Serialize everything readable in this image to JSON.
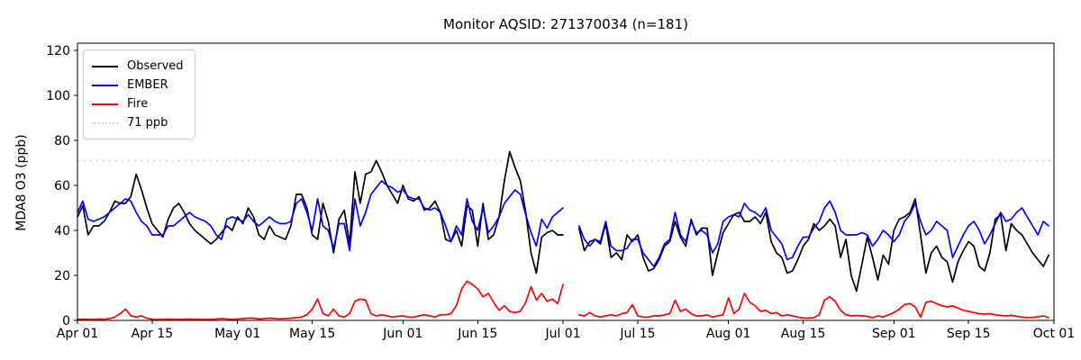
{
  "figure": {
    "title": "Monitor AQSID: 271370034 (n=181)",
    "ylabel": "MDA8 O3 (ppb)"
  },
  "legend": {
    "items": [
      {
        "label": "Observed",
        "color": "#000000",
        "style": "solid"
      },
      {
        "label": "EMBER",
        "color": "#0000ff",
        "style": "solid"
      },
      {
        "label": "Fire",
        "color": "#ff0000",
        "style": "solid"
      },
      {
        "label": "71 ppb",
        "color": "#d3d3d3",
        "style": "dotted"
      }
    ]
  },
  "chart_data": {
    "type": "line",
    "title": "Monitor AQSID: 271370034 (n=181)",
    "xlabel": "",
    "ylabel": "MDA8 O3 (ppb)",
    "grid": false,
    "legend_position": "upper left",
    "x_unit": "day_index_from_Apr_01",
    "x_range_days": 183,
    "x_tick_days": [
      0,
      14,
      30,
      44,
      61,
      75,
      91,
      105,
      122,
      136,
      153,
      167,
      183
    ],
    "x_tick_labels": [
      "Apr 01",
      "Apr 15",
      "May 01",
      "May 15",
      "Jun 01",
      "Jun 15",
      "Jul 01",
      "Jul 15",
      "Aug 01",
      "Aug 15",
      "Sep 01",
      "Sep 15",
      "Oct 01"
    ],
    "y_ticks": [
      0,
      20,
      40,
      60,
      80,
      100,
      120
    ],
    "ylim": [
      0,
      123.2
    ],
    "missing_days_note": "Jul 02 and Jul 03 are null (gap in lines)",
    "threshold": {
      "value": 71,
      "label": "71 ppb",
      "color": "#d3d3d3",
      "style": "dotted"
    },
    "series": [
      {
        "name": "Observed",
        "color": "#000000",
        "values": [
          46,
          51,
          38,
          42,
          42,
          44,
          48,
          53,
          52,
          52,
          55,
          65,
          58,
          50,
          43,
          40,
          37,
          45,
          50,
          52,
          48,
          43,
          40,
          38,
          36,
          34,
          36,
          39,
          42,
          40,
          46,
          43,
          50,
          46,
          38,
          36,
          42,
          38,
          37,
          36,
          42,
          56,
          56,
          50,
          38,
          36,
          52,
          44,
          30,
          45,
          49,
          34,
          66,
          52,
          65,
          66,
          71,
          66,
          60,
          56,
          52,
          60,
          54,
          53,
          55,
          49,
          50,
          53,
          48,
          36,
          35,
          40,
          33,
          51,
          49,
          33,
          52,
          36,
          38,
          46,
          62,
          75,
          68,
          62,
          48,
          30,
          21,
          37,
          39,
          40,
          38,
          38,
          null,
          null,
          41,
          31,
          35,
          36,
          34,
          43,
          28,
          30,
          27,
          38,
          35,
          38,
          28,
          22,
          23,
          27,
          33,
          35,
          44,
          37,
          33,
          45,
          38,
          41,
          41,
          20,
          30,
          39,
          43,
          47,
          48,
          44,
          44,
          46,
          43,
          48,
          35,
          30,
          28,
          21,
          22,
          27,
          33,
          36,
          43,
          40,
          42,
          45,
          42,
          28,
          36,
          20,
          13,
          25,
          37,
          28,
          18,
          29,
          25,
          40,
          45,
          46,
          48,
          54,
          38,
          21,
          30,
          33,
          28,
          26,
          17,
          26,
          31,
          35,
          33,
          24,
          22,
          30,
          45,
          47,
          31,
          43,
          40,
          38,
          34,
          30,
          27,
          24,
          29
        ]
      },
      {
        "name": "EMBER",
        "color": "#0000ff",
        "values": [
          48,
          53,
          45,
          44,
          45,
          46,
          48,
          50,
          52,
          54,
          53,
          48,
          44,
          42,
          38,
          38,
          38,
          42,
          42,
          44,
          46,
          48,
          46,
          45,
          44,
          42,
          38,
          36,
          45,
          46,
          45,
          44,
          47,
          44,
          42,
          44,
          46,
          44,
          43,
          43,
          44,
          52,
          54,
          48,
          40,
          54,
          42,
          40,
          32,
          43,
          43,
          31,
          54,
          42,
          48,
          56,
          59,
          62,
          60,
          59,
          57,
          58,
          55,
          54,
          54,
          50,
          49,
          50,
          48,
          42,
          35,
          42,
          38,
          54,
          44,
          40,
          50,
          39,
          42,
          46,
          52,
          55,
          58,
          56,
          47,
          39,
          33,
          45,
          41,
          46,
          48,
          50,
          null,
          null,
          42,
          36,
          33,
          36,
          35,
          44,
          33,
          31,
          31,
          32,
          36,
          36,
          30,
          27,
          24,
          28,
          34,
          36,
          48,
          38,
          35,
          44,
          39,
          40,
          38,
          30,
          34,
          44,
          46,
          47,
          46,
          52,
          49,
          48,
          46,
          50,
          40,
          37,
          34,
          27,
          28,
          33,
          37,
          37,
          41,
          44,
          50,
          53,
          48,
          40,
          38,
          38,
          38,
          39,
          38,
          33,
          36,
          40,
          38,
          35,
          38,
          44,
          47,
          52,
          44,
          38,
          40,
          44,
          42,
          40,
          28,
          33,
          38,
          42,
          44,
          40,
          34,
          38,
          43,
          48,
          44,
          45,
          48,
          50,
          46,
          42,
          38,
          44,
          42
        ]
      },
      {
        "name": "Fire",
        "color": "#ff0000",
        "values": [
          0.5,
          0.5,
          0.4,
          0.5,
          0.6,
          0.5,
          0.8,
          1.5,
          3,
          5,
          2,
          1.5,
          2,
          1,
          0.5,
          0.4,
          0.5,
          0.6,
          0.5,
          0.4,
          0.5,
          0.6,
          0.5,
          0.5,
          0.4,
          0.5,
          0.6,
          0.8,
          0.6,
          0.5,
          0.6,
          0.8,
          1,
          1,
          0.6,
          0.8,
          1,
          0.8,
          0.7,
          0.8,
          1,
          1.2,
          1.5,
          2.5,
          5,
          9.5,
          3,
          2,
          5,
          2,
          1.5,
          3,
          8.5,
          9.5,
          9,
          3,
          2,
          2.5,
          2,
          1.5,
          1.8,
          2,
          1.5,
          1.5,
          2,
          2.5,
          2,
          1.5,
          2.5,
          2.5,
          3,
          6.5,
          14,
          17.5,
          16,
          14,
          10.5,
          12,
          8,
          4.5,
          6.5,
          4,
          3.5,
          4,
          8,
          15,
          9,
          12,
          8.5,
          9.5,
          7.5,
          16,
          null,
          null,
          2.5,
          2,
          3.5,
          2,
          1.5,
          2,
          2.5,
          2,
          3,
          3.5,
          7,
          2,
          1.5,
          1.5,
          2,
          2,
          2.5,
          3,
          9,
          4,
          5,
          3,
          2,
          2,
          2.5,
          1.5,
          2,
          2.5,
          10,
          3,
          5,
          12,
          8,
          6.5,
          4,
          4.5,
          3,
          3.5,
          2,
          2.5,
          2,
          1.5,
          1,
          1,
          1.2,
          2.5,
          9,
          10.5,
          8.5,
          4.5,
          2.5,
          2,
          2.2,
          2,
          1.8,
          1.2,
          2,
          1.5,
          2.5,
          3.5,
          5,
          7,
          7.5,
          6,
          1.5,
          8,
          8.5,
          7.5,
          6.5,
          6,
          6.5,
          5.5,
          4.5,
          4,
          3.5,
          3,
          2.8,
          3,
          2.5,
          2.2,
          2,
          2.2,
          1.8,
          1.5,
          1.3,
          1.3,
          1.6,
          2,
          1.2
        ]
      }
    ]
  }
}
